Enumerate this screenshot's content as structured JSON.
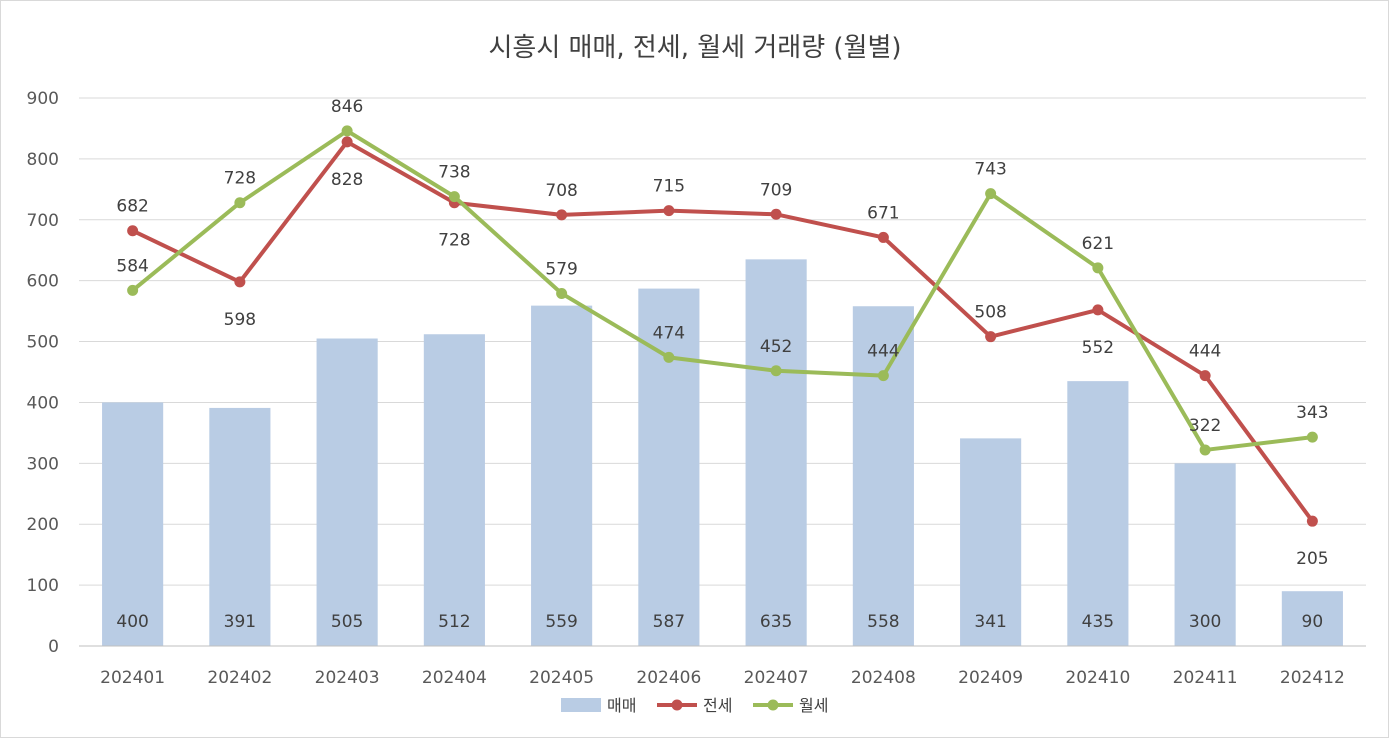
{
  "chart_data": {
    "type": "bar+line",
    "title": "시흥시 매매, 전세, 월세 거래량 (월별)",
    "xlabel": "",
    "ylabel": "",
    "ylim": [
      0,
      900
    ],
    "y_ticks": [
      0,
      100,
      200,
      300,
      400,
      500,
      600,
      700,
      800,
      900
    ],
    "categories": [
      "202401",
      "202402",
      "202403",
      "202404",
      "202405",
      "202406",
      "202407",
      "202408",
      "202409",
      "202410",
      "202411",
      "202412"
    ],
    "series": [
      {
        "name": "매매",
        "type": "bar",
        "color": "#b9cce4",
        "values": [
          400,
          391,
          505,
          512,
          559,
          587,
          635,
          558,
          341,
          435,
          300,
          90
        ]
      },
      {
        "name": "전세",
        "type": "line",
        "color": "#c0504d",
        "values": [
          682,
          598,
          828,
          728,
          708,
          715,
          709,
          671,
          508,
          552,
          444,
          205
        ]
      },
      {
        "name": "월세",
        "type": "line",
        "color": "#9bbb59",
        "values": [
          584,
          728,
          846,
          738,
          579,
          474,
          452,
          444,
          743,
          621,
          322,
          343
        ]
      }
    ],
    "grid": true,
    "legend": "bottom"
  }
}
